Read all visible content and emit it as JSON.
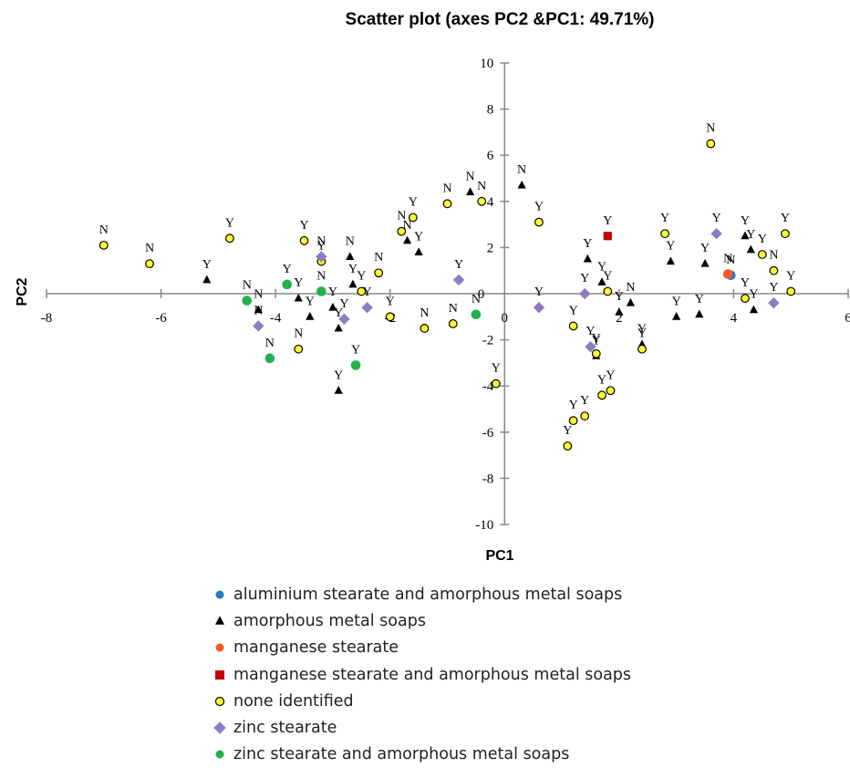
{
  "chart_data": {
    "type": "scatter",
    "title": "Scatter plot  (axes PC2 &PC1: 49.71%)",
    "xlabel": "PC1",
    "ylabel": "PC2",
    "xlim": [
      -8,
      6
    ],
    "ylim": [
      -10,
      10
    ],
    "xticks": [
      -8,
      -6,
      -4,
      -2,
      0,
      2,
      4,
      6
    ],
    "yticks": [
      -10,
      -8,
      -6,
      -4,
      -2,
      0,
      2,
      4,
      6,
      8,
      10
    ],
    "grid": false,
    "legend_position": "bottom",
    "series": [
      {
        "name": "aluminium stearate and amorphous metal soaps",
        "marker": "circle",
        "color": "#2e75c8",
        "points": [
          [
            3.95,
            0.8,
            "N"
          ]
        ]
      },
      {
        "name": "amorphous metal soaps",
        "marker": "triangle",
        "color": "#000000",
        "points": [
          [
            -5.2,
            0.6,
            "Y"
          ],
          [
            -4.3,
            -0.7,
            "N"
          ],
          [
            -3.6,
            -0.2,
            "Y"
          ],
          [
            -3.4,
            -1.0,
            "Y"
          ],
          [
            -3.0,
            -0.6,
            "Y"
          ],
          [
            -2.9,
            -1.5,
            "Y"
          ],
          [
            -2.9,
            -4.2,
            "Y"
          ],
          [
            -2.7,
            1.6,
            "N"
          ],
          [
            -2.65,
            0.4,
            "Y"
          ],
          [
            -1.7,
            2.3,
            "N"
          ],
          [
            -1.5,
            1.8,
            "Y"
          ],
          [
            -0.6,
            4.4,
            "N"
          ],
          [
            0.3,
            4.7,
            "N"
          ],
          [
            1.45,
            1.5,
            "Y"
          ],
          [
            1.6,
            -2.7,
            "Y"
          ],
          [
            1.7,
            0.5,
            "Y"
          ],
          [
            2.0,
            -0.8,
            "Y"
          ],
          [
            2.2,
            -0.4,
            "N"
          ],
          [
            2.4,
            -2.2,
            "Y"
          ],
          [
            2.9,
            1.4,
            "Y"
          ],
          [
            3.0,
            -1.0,
            "Y"
          ],
          [
            3.4,
            -0.9,
            "Y"
          ],
          [
            3.5,
            1.3,
            "Y"
          ],
          [
            4.2,
            2.5,
            "Y"
          ],
          [
            4.3,
            1.9,
            "Y"
          ],
          [
            4.35,
            -0.7,
            "Y"
          ]
        ]
      },
      {
        "name": "manganese stearate",
        "marker": "circle",
        "color": "#f15a24",
        "points": [
          [
            3.9,
            0.85,
            "N"
          ]
        ]
      },
      {
        "name": "manganese stearate and amorphous metal soaps",
        "marker": "square",
        "color": "#c00000",
        "points": [
          [
            1.8,
            2.5,
            "Y"
          ]
        ]
      },
      {
        "name": "none identified",
        "marker": "circle",
        "color": "#ffff33",
        "points": [
          [
            -7.0,
            2.1,
            "N"
          ],
          [
            -6.2,
            1.3,
            "N"
          ],
          [
            -4.8,
            2.4,
            "Y"
          ],
          [
            -3.6,
            -2.4,
            "N"
          ],
          [
            -3.5,
            2.3,
            "Y"
          ],
          [
            -3.2,
            1.4,
            "Y"
          ],
          [
            -2.5,
            0.1,
            "Y"
          ],
          [
            -2.2,
            0.9,
            "N"
          ],
          [
            -2.0,
            -1.0,
            "Y"
          ],
          [
            -1.8,
            2.7,
            "N"
          ],
          [
            -1.6,
            3.3,
            "Y"
          ],
          [
            -1.4,
            -1.5,
            "N"
          ],
          [
            -1.0,
            3.9,
            "N"
          ],
          [
            -0.9,
            -1.3,
            "N"
          ],
          [
            -0.4,
            4.0,
            "N"
          ],
          [
            -0.15,
            -3.9,
            "Y"
          ],
          [
            0.6,
            3.1,
            "Y"
          ],
          [
            1.1,
            -6.6,
            "Y"
          ],
          [
            1.2,
            -1.4,
            "Y"
          ],
          [
            1.2,
            -5.5,
            "Y"
          ],
          [
            1.4,
            -5.3,
            "Y"
          ],
          [
            1.6,
            -2.6,
            "Y"
          ],
          [
            1.7,
            -4.4,
            "Y"
          ],
          [
            1.8,
            0.1,
            "Y"
          ],
          [
            1.85,
            -4.2,
            "Y"
          ],
          [
            2.4,
            -2.4,
            "Y"
          ],
          [
            2.8,
            2.6,
            "Y"
          ],
          [
            3.6,
            6.5,
            "N"
          ],
          [
            4.2,
            -0.2,
            "Y"
          ],
          [
            4.5,
            1.7,
            "Y"
          ],
          [
            4.7,
            1.0,
            "N"
          ],
          [
            4.9,
            2.6,
            "Y"
          ],
          [
            5.0,
            0.1,
            "Y"
          ]
        ]
      },
      {
        "name": "zinc stearate",
        "marker": "diamond",
        "color": "#8e7cc3",
        "points": [
          [
            -4.3,
            -1.4,
            "N"
          ],
          [
            -3.2,
            1.6,
            "N"
          ],
          [
            -2.8,
            -1.1,
            "Y"
          ],
          [
            -2.4,
            -0.6,
            "Y"
          ],
          [
            -0.8,
            0.6,
            "Y"
          ],
          [
            0.6,
            -0.6,
            "Y"
          ],
          [
            1.4,
            0.0,
            "Y"
          ],
          [
            1.5,
            -2.3,
            "Y"
          ],
          [
            3.7,
            2.6,
            "Y"
          ],
          [
            4.7,
            -0.4,
            "Y"
          ]
        ]
      },
      {
        "name": "zinc stearate and amorphous metal soaps",
        "marker": "circle",
        "color": "#22b14c",
        "points": [
          [
            -4.5,
            -0.3,
            "N"
          ],
          [
            -4.1,
            -2.8,
            "N"
          ],
          [
            -3.8,
            0.4,
            "Y"
          ],
          [
            -3.2,
            0.1,
            "N"
          ],
          [
            -2.6,
            -3.1,
            "Y"
          ],
          [
            -0.5,
            -0.9,
            "N"
          ]
        ]
      }
    ]
  }
}
